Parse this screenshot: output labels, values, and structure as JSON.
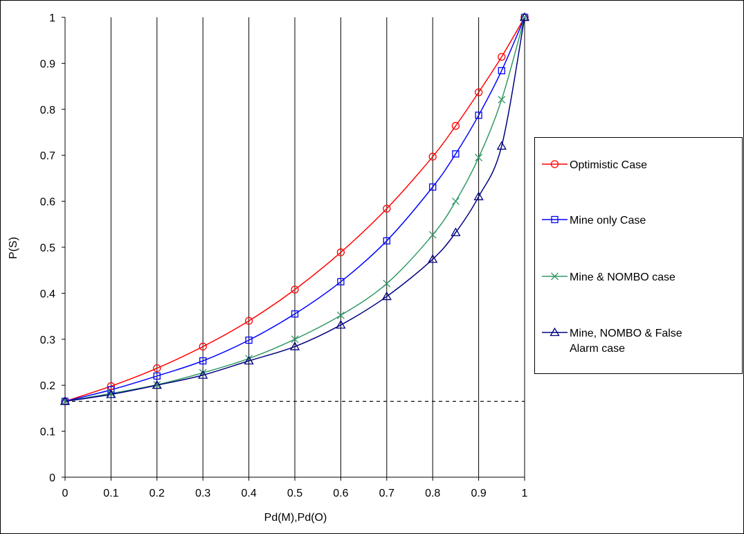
{
  "chart_data": {
    "type": "line",
    "title": "",
    "xlabel": "Pd(M),Pd(O)",
    "ylabel": "P(S)",
    "xlim": [
      0,
      1
    ],
    "ylim": [
      0,
      1
    ],
    "x_ticks": [
      "0",
      "0.1",
      "0.2",
      "0.3",
      "0.4",
      "0.5",
      "0.6",
      "0.7",
      "0.8",
      "0.9",
      "1"
    ],
    "y_ticks": [
      "0",
      "0.1",
      "0.2",
      "0.3",
      "0.4",
      "0.5",
      "0.6",
      "0.7",
      "0.8",
      "0.9",
      "1"
    ],
    "grid": "vertical major gridlines",
    "legend_position": "right",
    "baseline": {
      "y": 0.165,
      "style": "dashed"
    },
    "series": [
      {
        "name": "Optimistic Case",
        "color": "#ff0000",
        "marker": "circle",
        "x": [
          0,
          0.1,
          0.2,
          0.3,
          0.4,
          0.5,
          0.6,
          0.7,
          0.8,
          0.85,
          0.9,
          0.95,
          1
        ],
        "y": [
          0.165,
          0.198,
          0.237,
          0.284,
          0.34,
          0.408,
          0.489,
          0.584,
          0.697,
          0.764,
          0.837,
          0.914,
          1.0
        ]
      },
      {
        "name": "Mine only Case",
        "color": "#0000ff",
        "marker": "square",
        "x": [
          0,
          0.1,
          0.2,
          0.3,
          0.4,
          0.5,
          0.6,
          0.7,
          0.8,
          0.85,
          0.9,
          0.95,
          1
        ],
        "y": [
          0.165,
          0.19,
          0.22,
          0.253,
          0.298,
          0.355,
          0.425,
          0.514,
          0.631,
          0.703,
          0.787,
          0.884,
          1.0
        ]
      },
      {
        "name": "Mine & NOMBO case",
        "color": "#339966",
        "marker": "x",
        "x": [
          0,
          0.1,
          0.2,
          0.3,
          0.4,
          0.5,
          0.6,
          0.7,
          0.8,
          0.85,
          0.9,
          0.95,
          1
        ],
        "y": [
          0.165,
          0.182,
          0.201,
          0.227,
          0.258,
          0.3,
          0.352,
          0.421,
          0.527,
          0.6,
          0.695,
          0.821,
          1.0
        ]
      },
      {
        "name": "Mine, NOMBO & False Alarm case",
        "color": "#000080",
        "marker": "triangle",
        "x": [
          0,
          0.1,
          0.2,
          0.3,
          0.4,
          0.5,
          0.6,
          0.7,
          0.8,
          0.85,
          0.9,
          0.95,
          1
        ],
        "y": [
          0.165,
          0.18,
          0.2,
          0.222,
          0.253,
          0.284,
          0.331,
          0.393,
          0.474,
          0.532,
          0.61,
          0.72,
          1.0
        ]
      }
    ],
    "legend_labels": [
      [
        "Optimistic Case"
      ],
      [
        "Mine only Case"
      ],
      [
        "Mine & NOMBO case"
      ],
      [
        "Mine, NOMBO & False",
        "Alarm case"
      ]
    ]
  }
}
